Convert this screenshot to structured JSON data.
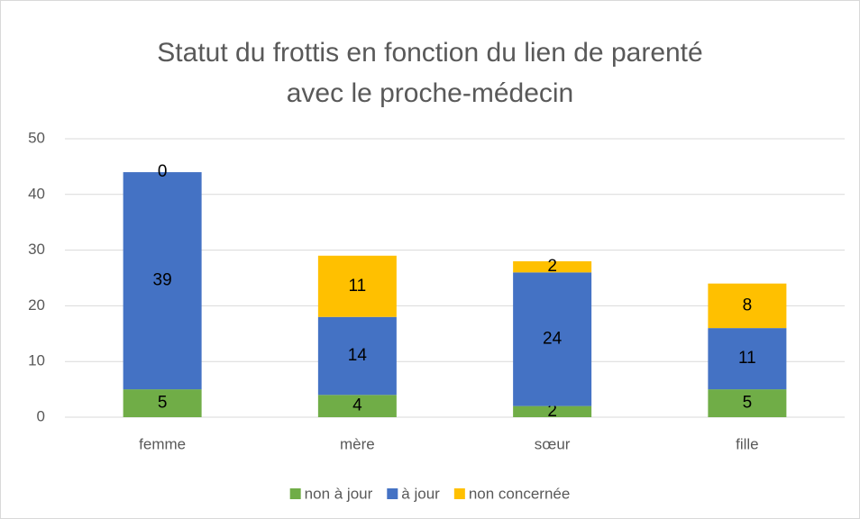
{
  "chart_data": {
    "type": "stacked_bar",
    "title": [
      "Statut du frottis en fonction du lien de parenté",
      "avec le proche-médecin"
    ],
    "categories": [
      "femme",
      "mère",
      "sœur",
      "fille"
    ],
    "series": [
      {
        "name": "non à jour",
        "color": "#70ad47",
        "values": [
          5,
          4,
          2,
          5
        ]
      },
      {
        "name": "à jour",
        "color": "#4472c4",
        "values": [
          39,
          14,
          24,
          11
        ]
      },
      {
        "name": "non concernée",
        "color": "#ffc000",
        "values": [
          0,
          11,
          2,
          8
        ]
      }
    ],
    "ylim": [
      0,
      50
    ],
    "yticks": [
      0,
      10,
      20,
      30,
      40,
      50
    ],
    "grid": true,
    "legend": "bottom"
  }
}
